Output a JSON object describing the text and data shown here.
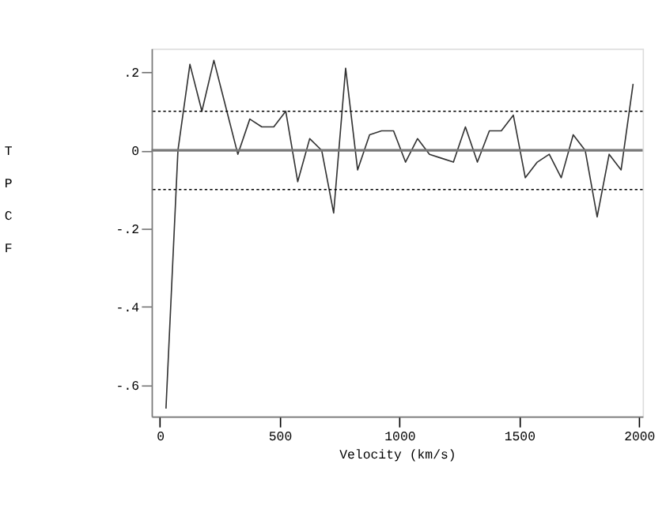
{
  "chart_data": {
    "type": "line",
    "xlabel": "Velocity (km/s)",
    "ylabel": "TPCF",
    "x": [
      25,
      75,
      125,
      175,
      225,
      275,
      325,
      375,
      425,
      475,
      525,
      575,
      625,
      675,
      725,
      775,
      825,
      875,
      925,
      975,
      1025,
      1075,
      1125,
      1175,
      1225,
      1275,
      1325,
      1375,
      1425,
      1475,
      1525,
      1575,
      1625,
      1675,
      1725,
      1775,
      1825,
      1875,
      1925,
      1975
    ],
    "series": [
      {
        "color": "#333333",
        "values": [
          -0.66,
          0.0,
          0.22,
          0.1,
          0.23,
          0.11,
          -0.01,
          0.08,
          0.06,
          0.06,
          0.1,
          -0.08,
          0.03,
          0.0,
          -0.16,
          0.21,
          -0.05,
          0.04,
          0.05,
          0.05,
          -0.03,
          0.03,
          -0.01,
          -0.02,
          -0.03,
          0.06,
          -0.03,
          0.05,
          0.05,
          0.09,
          -0.07,
          -0.03,
          -0.01,
          -0.07,
          0.04,
          0.0,
          -0.17,
          -0.01,
          -0.05,
          0.17
        ]
      }
    ],
    "xlim": [
      -35,
      2015
    ],
    "ylim": [
      -0.68,
      0.26
    ],
    "xticks": [
      0,
      500,
      1000,
      1500,
      2000
    ],
    "yticks": [
      {
        "value": -0.6,
        "label": "-.6"
      },
      {
        "value": -0.4,
        "label": "-.4"
      },
      {
        "value": -0.2,
        "label": "-.2"
      },
      {
        "value": 0,
        "label": "0"
      },
      {
        "value": 0.2,
        "label": ".2"
      }
    ],
    "ref_lines": [
      {
        "axis": "y",
        "value": 0,
        "color": "#777777",
        "line_style": "solid"
      },
      {
        "axis": "y",
        "value": 0.1,
        "color": "#000000",
        "line_style": "dotted"
      },
      {
        "axis": "y",
        "value": -0.1,
        "color": "#000000",
        "line_style": "dotted"
      }
    ],
    "grid": false,
    "marker": "none",
    "line_style": "solid"
  }
}
